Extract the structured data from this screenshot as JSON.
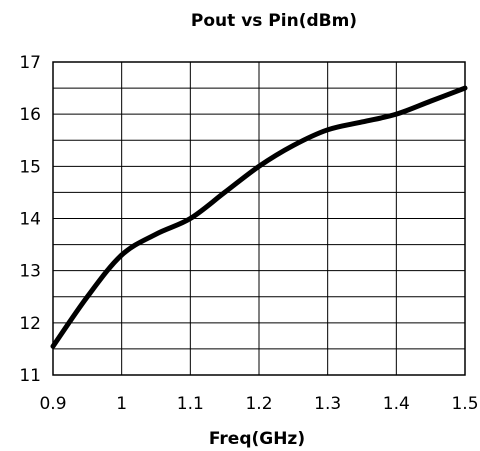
{
  "chart_data": {
    "type": "line",
    "title": "Pout vs Pin(dBm)",
    "xlabel": "Freq(GHz)",
    "ylabel": "",
    "xlim": [
      0.9,
      1.5
    ],
    "ylim": [
      11,
      17
    ],
    "x_ticks": [
      "0.9",
      "1",
      "1.1",
      "1.2",
      "1.3",
      "1.4",
      "1.5"
    ],
    "y_ticks": [
      "11",
      "12",
      "13",
      "14",
      "15",
      "16",
      "17"
    ],
    "grid": true,
    "series": [
      {
        "x": [
          0.9,
          0.95,
          1.0,
          1.05,
          1.1,
          1.15,
          1.2,
          1.25,
          1.3,
          1.35,
          1.4,
          1.45,
          1.5
        ],
        "values": [
          11.55,
          12.5,
          13.3,
          13.7,
          14.0,
          14.5,
          15.0,
          15.4,
          15.7,
          15.85,
          16.0,
          16.25,
          16.5
        ],
        "color": "#000000"
      }
    ]
  }
}
